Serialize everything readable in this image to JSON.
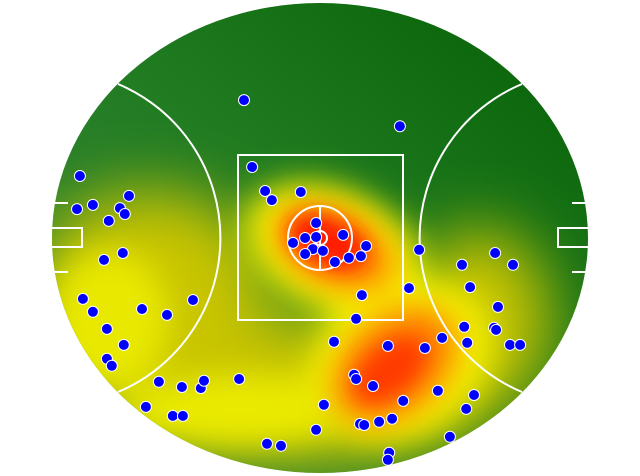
{
  "chart_data": {
    "type": "scatter",
    "overlay": "heatmap",
    "background": "australian-football-field",
    "field_units": "metres",
    "field_length": 165,
    "field_width": 135,
    "colors": {
      "heat_low": "#056605",
      "heat_mid": "#f5f500",
      "heat_high": "#ff1a00",
      "point_fill": "#0000ff",
      "point_stroke": "#ffffff",
      "field_lines": "#ffffff"
    },
    "points": [
      [
        -23.4,
        39.6
      ],
      [
        24.6,
        32.1
      ],
      [
        -20.9,
        20.4
      ],
      [
        -16.9,
        13.5
      ],
      [
        -14.8,
        10.9
      ],
      [
        -5.9,
        13.2
      ],
      [
        -1.2,
        4.3
      ],
      [
        7.1,
        0.9
      ],
      [
        -4.6,
        0
      ],
      [
        -1.2,
        0.3
      ],
      [
        -8.3,
        -1.4
      ],
      [
        -2.2,
        -3.2
      ],
      [
        0.9,
        -3.7
      ],
      [
        -4.6,
        -4.6
      ],
      [
        14.2,
        -2.3
      ],
      [
        12.6,
        -5.2
      ],
      [
        8.9,
        -5.7
      ],
      [
        4.6,
        -6.9
      ],
      [
        30.5,
        -3.4
      ],
      [
        -73.9,
        17.8
      ],
      [
        -74.8,
        8.3
      ],
      [
        -69.9,
        9.5
      ],
      [
        -61.6,
        8.6
      ],
      [
        -58.8,
        12.1
      ],
      [
        -60.1,
        6.9
      ],
      [
        -65.0,
        4.9
      ],
      [
        -66.5,
        -6.3
      ],
      [
        -60.7,
        -4.3
      ],
      [
        43.7,
        -7.7
      ],
      [
        53.9,
        -4.3
      ],
      [
        59.4,
        -7.7
      ],
      [
        46.2,
        -14.1
      ],
      [
        54.8,
        -19.8
      ],
      [
        12.9,
        -16.4
      ],
      [
        27.4,
        -14.4
      ],
      [
        11.1,
        -23.2
      ],
      [
        -73.0,
        -17.5
      ],
      [
        -69.9,
        -21.2
      ],
      [
        -54.8,
        -20.4
      ],
      [
        -47.1,
        -22.1
      ],
      [
        -39.1,
        -17.8
      ],
      [
        -65.6,
        -26.1
      ],
      [
        -60.4,
        -30.7
      ],
      [
        -65.6,
        -34.7
      ],
      [
        -64.1,
        -36.7
      ],
      [
        4.3,
        -29.8
      ],
      [
        20.9,
        -31.0
      ],
      [
        32.3,
        -31.6
      ],
      [
        37.6,
        -28.7
      ],
      [
        44.4,
        -25.5
      ],
      [
        45.3,
        -30.1
      ],
      [
        53.6,
        -25.8
      ],
      [
        54.2,
        -26.4
      ],
      [
        58.5,
        -30.7
      ],
      [
        61.6,
        -30.7
      ],
      [
        10.5,
        -39.3
      ],
      [
        11.1,
        -40.5
      ],
      [
        16.3,
        -42.5
      ],
      [
        25.6,
        -46.8
      ],
      [
        36.3,
        -43.9
      ],
      [
        47.4,
        -45.1
      ],
      [
        45.0,
        -49.1
      ],
      [
        -49.6,
        -41.3
      ],
      [
        -42.5,
        -42.8
      ],
      [
        -36.7,
        -43.1
      ],
      [
        -35.7,
        -41.0
      ],
      [
        -24.9,
        -40.5
      ],
      [
        -53.6,
        -48.5
      ],
      [
        -45.3,
        -51.1
      ],
      [
        -42.2,
        -51.1
      ],
      [
        1.2,
        -47.9
      ],
      [
        -1.2,
        -55.1
      ],
      [
        12.3,
        -53.4
      ],
      [
        13.6,
        -53.7
      ],
      [
        18.2,
        -52.8
      ],
      [
        22.2,
        -51.9
      ],
      [
        40.0,
        -57.1
      ],
      [
        -16.3,
        -59.1
      ],
      [
        -12.0,
        -59.7
      ],
      [
        21.3,
        -61.7
      ],
      [
        20.9,
        -63.7
      ]
    ],
    "hotspots": [
      {
        "x": 2,
        "y": -1,
        "intensity": 1.0
      },
      {
        "x": 22,
        "y": -40,
        "intensity": 0.85
      }
    ]
  }
}
